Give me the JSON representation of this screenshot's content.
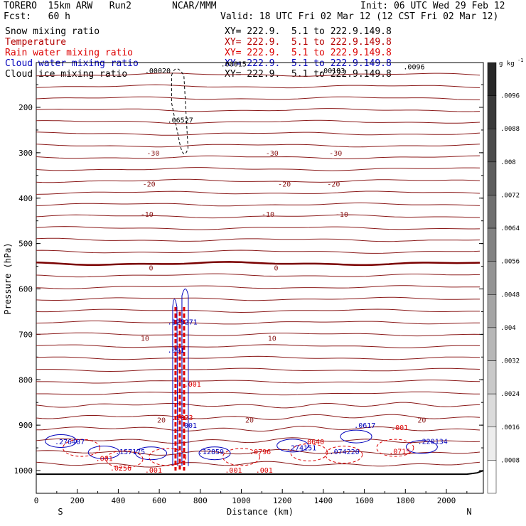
{
  "header": {
    "model": "TORERO  15km ARW   Run2",
    "org": "NCAR/MMM",
    "init": "Init: 06 UTC Wed 29 Feb 12",
    "fcst": "Fcst:   60 h",
    "valid": "Valid: 18 UTC Fri 02 Mar 12 (12 CST Fri 02 Mar 12)"
  },
  "fields": [
    {
      "name": "Snow mixing ratio",
      "xy": "XY= 222.9.  5.1 to 222.9.149.8",
      "color": "#000000"
    },
    {
      "name": "Temperature",
      "xy": "XY= 222.9.  5.1 to 222.9.149.8",
      "color": "#b40000"
    },
    {
      "name": "Rain water mixing ratio",
      "xy": "XY= 222.9.  5.1 to 222.9.149.8",
      "color": "#dd0000"
    },
    {
      "name": "Cloud water mixing ratio",
      "xy": "XY= 222.9.  5.1 to 222.9.149.8",
      "color": "#0000bb"
    },
    {
      "name": "Cloud ice mixing ratio",
      "xy": "XY= 222.9.  5.1 to 222.9.149.8",
      "color": "#000000"
    }
  ],
  "colorbar": {
    "unit": "g kg",
    "unit_exp": "-1",
    "levels": [
      ".0096",
      ".0088",
      ".008",
      ".0072",
      ".0064",
      ".0056",
      ".0048",
      ".004",
      ".0032",
      ".0024",
      ".0016",
      ".0008"
    ]
  },
  "chart_data": {
    "type": "cross-section contour",
    "xlabel": "Distance (km)",
    "ylabel": "Pressure (hPa)",
    "x_ticks": [
      "0",
      "200",
      "400",
      "600",
      "800",
      "1000",
      "1200",
      "1400",
      "1600",
      "1800",
      "2000"
    ],
    "y_ticks": [
      "200",
      "300",
      "400",
      "500",
      "600",
      "700",
      "800",
      "900",
      "1000"
    ],
    "xlim": [
      0,
      2200
    ],
    "ylim": [
      1050,
      100
    ],
    "left_end": "S",
    "right_end": "N",
    "temperature_contours": [
      {
        "label": "-30",
        "label_x": [
          570,
          1150,
          1460
        ]
      },
      {
        "label": "-20",
        "label_x": [
          550,
          1210,
          1450
        ]
      },
      {
        "label": "-10",
        "label_x": [
          540,
          1130,
          1490
        ]
      },
      {
        "label": "0",
        "label_x": [
          560,
          1170
        ]
      },
      {
        "label": "10",
        "label_x": [
          530,
          1150
        ]
      },
      {
        "label": "20",
        "label_x": [
          610,
          1040,
          1880
        ]
      }
    ],
    "annotations": [
      {
        "text": ".00020",
        "x": 530,
        "p": 125,
        "color": "#000000"
      },
      {
        "text": ".06527",
        "x": 640,
        "p": 234,
        "color": "#000000"
      },
      {
        "text": ".00183",
        "x": 1380,
        "p": 125,
        "color": "#000000"
      },
      {
        "text": ".0096",
        "x": 1790,
        "p": 116,
        "color": "#000000"
      },
      {
        "text": ".125271",
        "x": 640,
        "p": 678,
        "color": "#0000bb"
      },
      {
        "text": ".001",
        "x": 640,
        "p": 740,
        "color": "#0000bb"
      },
      {
        "text": ".001",
        "x": 720,
        "p": 815,
        "color": "#dd0000"
      },
      {
        "text": ".1623",
        "x": 660,
        "p": 889,
        "color": "#dd0000"
      },
      {
        "text": ".001",
        "x": 700,
        "p": 906,
        "color": "#0000bb"
      },
      {
        "text": ".157175",
        "x": 385,
        "p": 964,
        "color": "#0000bb"
      },
      {
        "text": ".12859",
        "x": 790,
        "p": 964,
        "color": "#0000bb"
      },
      {
        "text": ".0796",
        "x": 1040,
        "p": 964,
        "color": "#dd0000"
      },
      {
        "text": ".274151",
        "x": 1220,
        "p": 955,
        "color": "#0000bb"
      },
      {
        "text": ".0640",
        "x": 1300,
        "p": 942,
        "color": "#dd0000"
      },
      {
        "text": ".074220",
        "x": 1430,
        "p": 964,
        "color": "#0000bb"
      },
      {
        "text": ".0617",
        "x": 1550,
        "p": 906,
        "color": "#0000bb"
      },
      {
        "text": ".001",
        "x": 1730,
        "p": 911,
        "color": "#dd0000"
      },
      {
        "text": ".220134",
        "x": 1860,
        "p": 941,
        "color": "#0000bb"
      },
      {
        "text": ".0715",
        "x": 1720,
        "p": 963,
        "color": "#dd0000"
      },
      {
        "text": ".276407",
        "x": 90,
        "p": 942,
        "color": "#0000bb"
      },
      {
        "text": ".001",
        "x": 290,
        "p": 979,
        "color": "#dd0000"
      },
      {
        "text": ".0256",
        "x": 360,
        "p": 1000,
        "color": "#dd0000"
      },
      {
        "text": ".001",
        "x": 530,
        "p": 1005,
        "color": "#dd0000"
      },
      {
        "text": ".001",
        "x": 920,
        "p": 1005,
        "color": "#dd0000"
      },
      {
        "text": ".001",
        "x": 1070,
        "p": 1005,
        "color": "#dd0000"
      },
      {
        "text": ".00015",
        "x": 900,
        "p": 110,
        "color": "#000000"
      }
    ]
  }
}
